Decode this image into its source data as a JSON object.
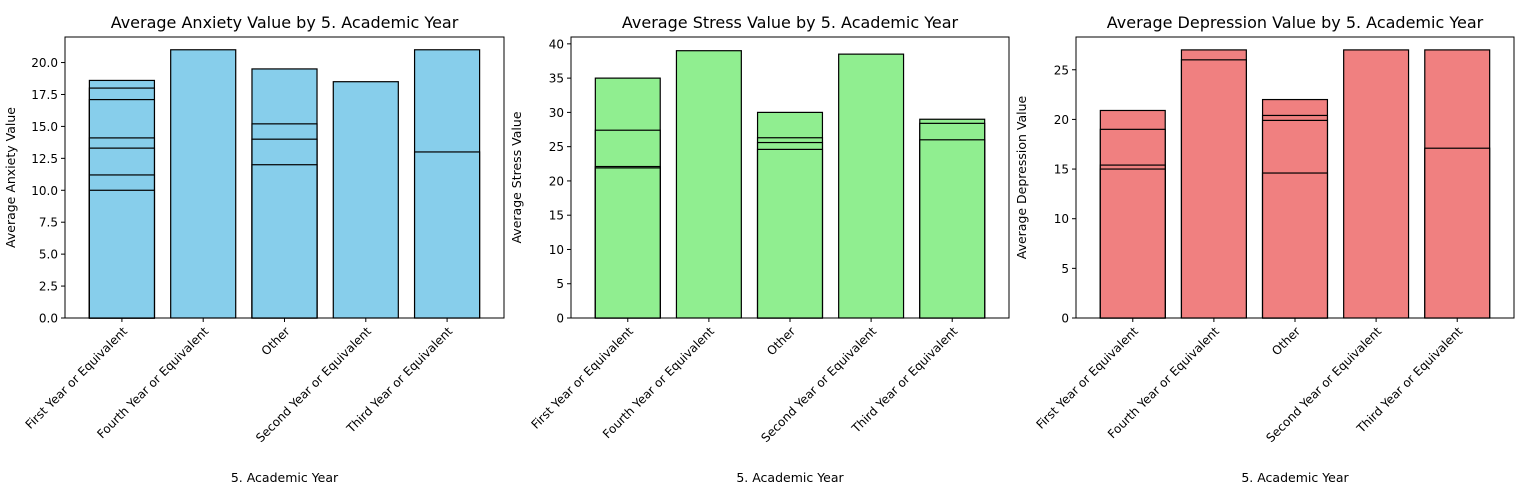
{
  "chart_data": [
    {
      "type": "bar",
      "title": "Average Anxiety Value by 5. Academic Year",
      "xlabel": "5. Academic Year",
      "ylabel": "Average Anxiety Value",
      "categories": [
        "First Year or Equivalent",
        "Fourth Year or Equivalent",
        "Other",
        "Second Year or Equivalent",
        "Third Year or Equivalent"
      ],
      "stacked_overlapping_bar_values": [
        [
          18.6,
          18.0,
          17.1,
          14.1,
          13.3,
          11.2,
          10.0
        ],
        [
          21.0
        ],
        [
          19.5,
          15.2,
          14.0,
          12.0
        ],
        [
          18.5
        ],
        [
          21.0,
          13.0
        ]
      ],
      "ylim": [
        0,
        22
      ],
      "yticks": [
        "0.0",
        "2.5",
        "5.0",
        "7.5",
        "10.0",
        "12.5",
        "15.0",
        "17.5",
        "20.0"
      ],
      "color": "#87ceeb",
      "grid": false
    },
    {
      "type": "bar",
      "title": "Average Stress Value by 5. Academic Year",
      "xlabel": "5. Academic Year",
      "ylabel": "Average Stress Value",
      "categories": [
        "First Year or Equivalent",
        "Fourth Year or Equivalent",
        "Other",
        "Second Year or Equivalent",
        "Third Year or Equivalent"
      ],
      "stacked_overlapping_bar_values": [
        [
          35.0,
          27.4,
          22.1,
          21.9
        ],
        [
          39.0
        ],
        [
          30.0,
          26.3,
          25.6,
          24.6
        ],
        [
          38.5
        ],
        [
          29.0,
          28.4,
          26.0
        ]
      ],
      "ylim": [
        0,
        41
      ],
      "yticks": [
        "0",
        "5",
        "10",
        "15",
        "20",
        "25",
        "30",
        "35",
        "40"
      ],
      "color": "#90ee90",
      "grid": false
    },
    {
      "type": "bar",
      "title": "Average Depression Value by 5. Academic Year",
      "xlabel": "5. Academic Year",
      "ylabel": "Average Depression Value",
      "categories": [
        "First Year or Equivalent",
        "Fourth Year or Equivalent",
        "Other",
        "Second Year or Equivalent",
        "Third Year or Equivalent"
      ],
      "stacked_overlapping_bar_values": [
        [
          20.9,
          19.0,
          15.4,
          15.0
        ],
        [
          27.0,
          26.0
        ],
        [
          22.0,
          20.4,
          19.9,
          14.6
        ],
        [
          27.0
        ],
        [
          27.0,
          17.1
        ]
      ],
      "ylim": [
        0,
        28.3
      ],
      "yticks": [
        "0",
        "5",
        "10",
        "15",
        "20",
        "25"
      ],
      "color": "#f08080",
      "grid": false
    }
  ]
}
